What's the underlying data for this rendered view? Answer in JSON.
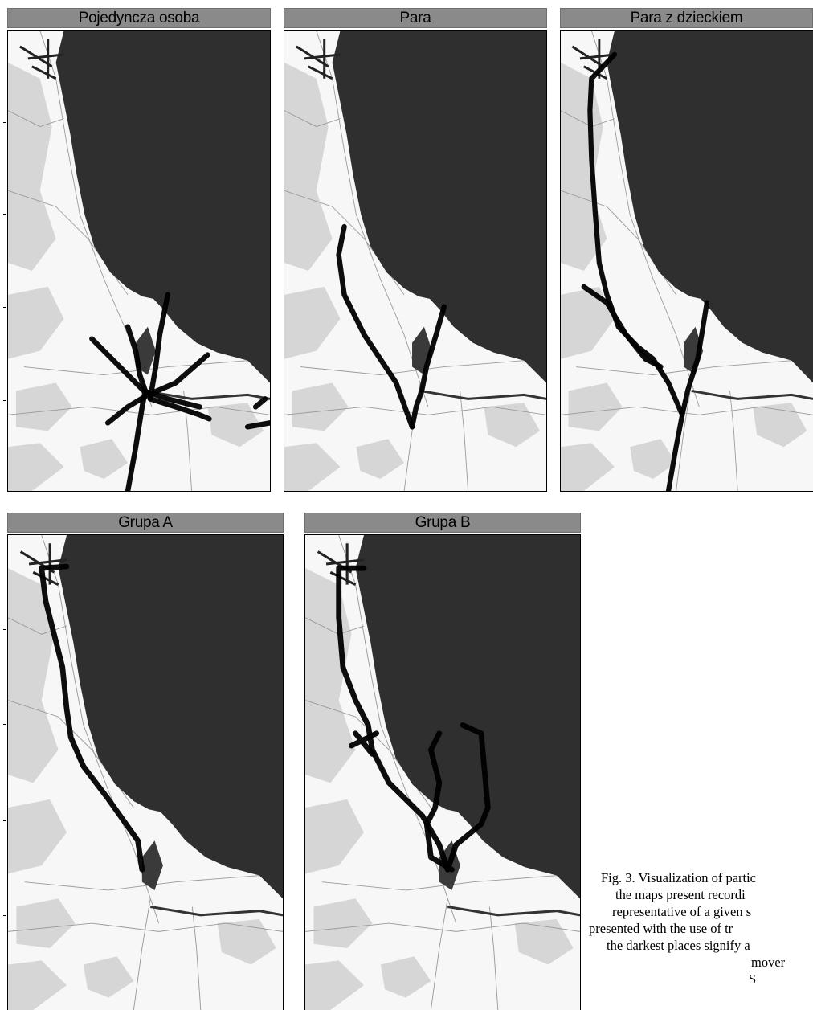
{
  "panels": [
    {
      "id": "pojedyncza",
      "title": "Pojedyncza osoba"
    },
    {
      "id": "para",
      "title": "Para"
    },
    {
      "id": "para-dziecko",
      "title": "Para z dzieckiem"
    },
    {
      "id": "grupa-a",
      "title": "Grupa A"
    },
    {
      "id": "grupa-b",
      "title": "Grupa B"
    }
  ],
  "caption": {
    "lines": [
      "Fig. 3. Visualization of partic",
      "the maps present recordi",
      "representative of a given s",
      "presented with the use of tr",
      "the darkest places signify a",
      "mover",
      "S"
    ]
  },
  "colors": {
    "sea": "#2f2f2f",
    "land": "#f7f7f7",
    "greenery": "#d6d6d6",
    "tracks": "#000000",
    "title_bar": "#8a8a8a"
  }
}
